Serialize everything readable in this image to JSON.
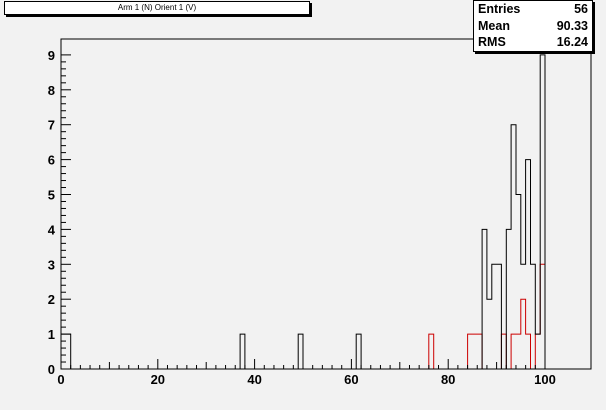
{
  "chart_data": {
    "type": "histogram",
    "title": "Arm 1 (N) Orient 1 (V)",
    "xlim": [
      0,
      100
    ],
    "ylim": [
      0,
      9.5
    ],
    "x_ticks": [
      "0",
      "20",
      "40",
      "60",
      "80",
      "100"
    ],
    "y_ticks": [
      "0",
      "1",
      "2",
      "3",
      "4",
      "5",
      "6",
      "7",
      "8",
      "9"
    ],
    "bin_width": 1,
    "series": [
      {
        "color": "#000000",
        "bins": [
          {
            "x": 0,
            "count": 1
          },
          {
            "x": 1,
            "count": 1
          },
          {
            "x": 37,
            "count": 1
          },
          {
            "x": 49,
            "count": 1
          },
          {
            "x": 61,
            "count": 1
          },
          {
            "x": 87,
            "count": 4
          },
          {
            "x": 88,
            "count": 2
          },
          {
            "x": 89,
            "count": 3
          },
          {
            "x": 90,
            "count": 3
          },
          {
            "x": 91,
            "count": 0
          },
          {
            "x": 92,
            "count": 4
          },
          {
            "x": 93,
            "count": 7
          },
          {
            "x": 94,
            "count": 5
          },
          {
            "x": 95,
            "count": 3
          },
          {
            "x": 96,
            "count": 6
          },
          {
            "x": 97,
            "count": 3
          },
          {
            "x": 98,
            "count": 1
          },
          {
            "x": 99,
            "count": 9
          }
        ]
      },
      {
        "color": "#cc0000",
        "bins": [
          {
            "x": 76,
            "count": 1
          },
          {
            "x": 84,
            "count": 1
          },
          {
            "x": 85,
            "count": 1
          },
          {
            "x": 86,
            "count": 1
          },
          {
            "x": 91,
            "count": 1
          },
          {
            "x": 92,
            "count": 0
          },
          {
            "x": 93,
            "count": 1
          },
          {
            "x": 94,
            "count": 1
          },
          {
            "x": 95,
            "count": 2
          },
          {
            "x": 96,
            "count": 1
          },
          {
            "x": 97,
            "count": 0
          },
          {
            "x": 98,
            "count": 1
          },
          {
            "x": 99,
            "count": 3
          }
        ]
      }
    ]
  },
  "stats": {
    "entries_label": "Entries",
    "entries_value": "56",
    "mean_label": "Mean",
    "mean_value": "90.33",
    "rms_label": "RMS",
    "rms_value": "16.24"
  },
  "colors": {
    "background": "#f2f2f2",
    "frame": "#000000"
  }
}
